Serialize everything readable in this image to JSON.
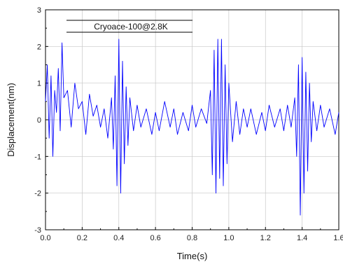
{
  "chart_data": {
    "type": "line",
    "xlabel": "Time(s)",
    "ylabel": "Displacement(nm)",
    "xlim": [
      0,
      1.6
    ],
    "ylim": [
      -3,
      3
    ],
    "xticks": [
      "0.0",
      "0.2",
      "0.4",
      "0.6",
      "0.8",
      "1.0",
      "1.2",
      "1.4",
      "1.6"
    ],
    "yticks": [
      "3",
      "2",
      "1",
      "0",
      "-1",
      "-2",
      "-3"
    ],
    "grid": true,
    "legend_position": "top-left",
    "series": [
      {
        "name": "Cryoace-100@2.8K",
        "color": "#0000ff",
        "x": [
          0.0,
          0.01,
          0.02,
          0.03,
          0.04,
          0.05,
          0.06,
          0.07,
          0.08,
          0.09,
          0.1,
          0.12,
          0.14,
          0.16,
          0.18,
          0.2,
          0.22,
          0.24,
          0.26,
          0.28,
          0.3,
          0.32,
          0.34,
          0.36,
          0.37,
          0.38,
          0.39,
          0.4,
          0.41,
          0.42,
          0.43,
          0.44,
          0.45,
          0.46,
          0.48,
          0.5,
          0.52,
          0.55,
          0.58,
          0.6,
          0.62,
          0.65,
          0.68,
          0.7,
          0.72,
          0.75,
          0.78,
          0.8,
          0.82,
          0.85,
          0.88,
          0.9,
          0.91,
          0.92,
          0.93,
          0.94,
          0.95,
          0.96,
          0.97,
          0.98,
          0.99,
          1.0,
          1.02,
          1.04,
          1.06,
          1.08,
          1.1,
          1.12,
          1.15,
          1.18,
          1.2,
          1.22,
          1.25,
          1.28,
          1.3,
          1.32,
          1.34,
          1.36,
          1.37,
          1.38,
          1.39,
          1.4,
          1.41,
          1.42,
          1.43,
          1.44,
          1.45,
          1.46,
          1.48,
          1.5,
          1.52,
          1.55,
          1.58,
          1.6
        ],
        "values": [
          0.5,
          1.5,
          -0.5,
          1.2,
          -1.0,
          0.8,
          0.2,
          1.4,
          -0.3,
          2.1,
          0.6,
          0.8,
          -0.2,
          1.0,
          0.3,
          0.5,
          -0.4,
          0.7,
          0.1,
          0.4,
          -0.2,
          0.3,
          -0.5,
          0.6,
          -0.8,
          1.2,
          -1.8,
          2.2,
          -2.0,
          1.6,
          -1.2,
          0.9,
          -0.7,
          0.6,
          -0.3,
          0.4,
          -0.2,
          0.3,
          -0.4,
          0.2,
          -0.3,
          0.5,
          -0.2,
          0.3,
          -0.4,
          0.2,
          -0.3,
          0.4,
          -0.2,
          0.3,
          -0.1,
          0.8,
          -1.5,
          1.9,
          -2.0,
          2.2,
          -1.6,
          2.2,
          -1.8,
          1.5,
          -1.2,
          1.0,
          -0.6,
          0.5,
          -0.4,
          0.3,
          -0.2,
          0.3,
          -0.4,
          0.2,
          -0.3,
          0.4,
          -0.2,
          0.3,
          -0.3,
          0.4,
          -0.2,
          0.6,
          -1.0,
          1.5,
          -2.6,
          1.7,
          -2.0,
          1.3,
          -1.4,
          1.0,
          -0.6,
          0.5,
          -0.3,
          0.4,
          -0.2,
          0.3,
          -0.4,
          0.2
        ]
      }
    ]
  }
}
